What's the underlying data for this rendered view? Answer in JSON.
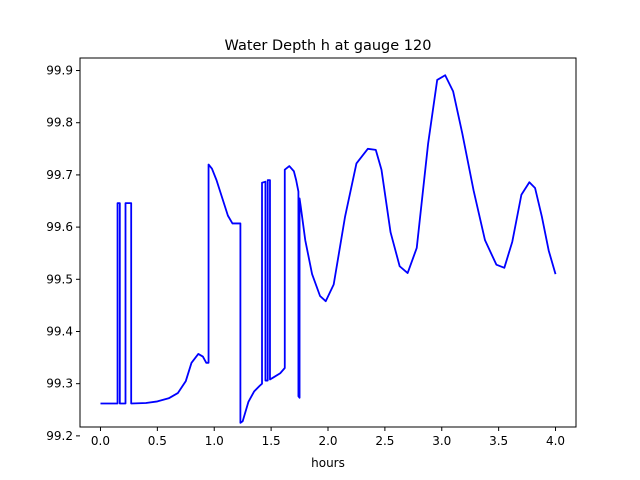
{
  "chart_data": {
    "type": "line",
    "title": "Water Depth h at gauge 120",
    "xlabel": "hours",
    "ylabel": "",
    "xlim": [
      -0.18,
      4.18
    ],
    "ylim": [
      99.217,
      99.924
    ],
    "xticks": [
      0.0,
      0.5,
      1.0,
      1.5,
      2.0,
      2.5,
      3.0,
      3.5,
      4.0
    ],
    "xtick_labels": [
      "0.0",
      "0.5",
      "1.0",
      "1.5",
      "2.0",
      "2.5",
      "3.0",
      "3.5",
      "4.0"
    ],
    "yticks": [
      99.2,
      99.3,
      99.4,
      99.5,
      99.6,
      99.7,
      99.8,
      99.9
    ],
    "ytick_labels": [
      "99.2",
      "99.3",
      "99.4",
      "99.5",
      "99.6",
      "99.7",
      "99.8",
      "99.9"
    ],
    "grid": false,
    "series": [
      {
        "color": "#0000ff",
        "x": [
          0.0,
          0.15,
          0.15,
          0.17,
          0.17,
          0.22,
          0.22,
          0.27,
          0.27,
          0.4,
          0.5,
          0.6,
          0.68,
          0.75,
          0.8,
          0.86,
          0.9,
          0.93,
          0.95,
          0.95,
          0.98,
          1.02,
          1.07,
          1.12,
          1.16,
          1.2,
          1.23,
          1.23,
          1.25,
          1.3,
          1.35,
          1.4,
          1.42,
          1.42,
          1.45,
          1.45,
          1.47,
          1.47,
          1.49,
          1.49,
          1.52,
          1.58,
          1.62,
          1.62,
          1.66,
          1.7,
          1.72,
          1.74,
          1.74,
          1.75,
          1.75,
          1.76,
          1.8,
          1.86,
          1.93,
          1.98,
          2.05,
          2.15,
          2.25,
          2.35,
          2.42,
          2.47,
          2.55,
          2.63,
          2.7,
          2.78,
          2.88,
          2.96,
          3.03,
          3.1,
          3.18,
          3.28,
          3.38,
          3.48,
          3.55,
          3.62,
          3.7,
          3.77,
          3.82,
          3.88,
          3.94,
          4.0
        ],
        "y": [
          99.262,
          99.262,
          99.646,
          99.646,
          99.262,
          99.262,
          99.646,
          99.646,
          99.262,
          99.263,
          99.266,
          99.272,
          99.282,
          99.305,
          99.34,
          99.357,
          99.352,
          99.34,
          99.34,
          99.72,
          99.712,
          99.69,
          99.656,
          99.622,
          99.607,
          99.607,
          99.607,
          99.225,
          99.228,
          99.265,
          99.285,
          99.296,
          99.3,
          99.685,
          99.687,
          99.306,
          99.306,
          99.69,
          99.69,
          99.308,
          99.312,
          99.32,
          99.33,
          99.71,
          99.717,
          99.707,
          99.69,
          99.668,
          99.276,
          99.273,
          99.655,
          99.64,
          99.575,
          99.51,
          99.468,
          99.458,
          99.49,
          99.62,
          99.722,
          99.75,
          99.748,
          99.71,
          99.59,
          99.525,
          99.512,
          99.56,
          99.76,
          99.882,
          99.891,
          99.86,
          99.78,
          99.67,
          99.575,
          99.528,
          99.522,
          99.572,
          99.662,
          99.686,
          99.675,
          99.62,
          99.555,
          99.51
        ]
      }
    ]
  }
}
